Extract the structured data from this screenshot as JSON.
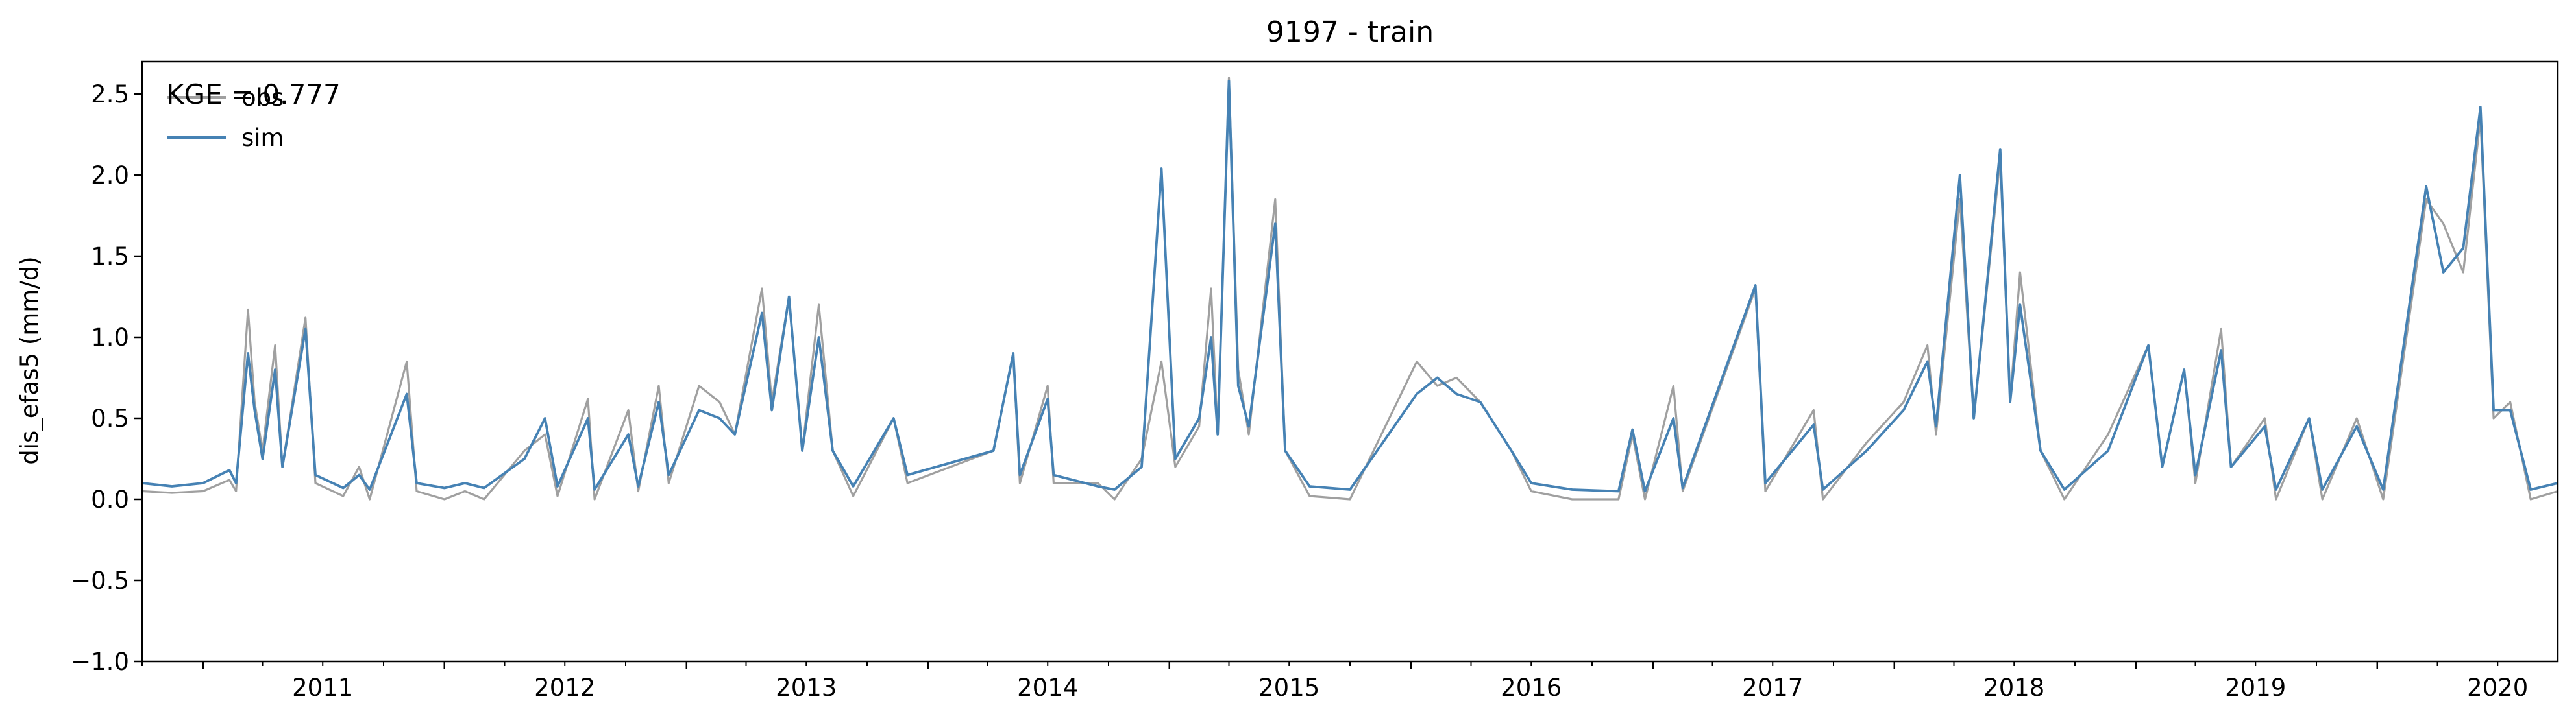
{
  "chart_data": {
    "type": "line",
    "title": "9197 - train",
    "xlabel": "",
    "ylabel": "dis_efas5 (mm/d)",
    "ylim": [
      -1.0,
      2.7
    ],
    "xlim": [
      "2010-10-01",
      "2020-09-30"
    ],
    "yticks": [
      -1.0,
      -0.5,
      0.0,
      0.5,
      1.0,
      1.5,
      2.0,
      2.5
    ],
    "ytick_labels": [
      "−1.0",
      "−0.5",
      "0.0",
      "0.5",
      "1.0",
      "1.5",
      "2.0",
      "2.5"
    ],
    "xtick_labels": [
      "2011",
      "2012",
      "2013",
      "2014",
      "2015",
      "2016",
      "2017",
      "2018",
      "2019",
      "2020"
    ],
    "grid": false,
    "legend_position": "top-left",
    "annotation": "KGE = 0.777",
    "series": [
      {
        "name": "obs",
        "color": "#a0a0a0",
        "points": [
          [
            "2010-10-01",
            0.05
          ],
          [
            "2010-11-15",
            0.04
          ],
          [
            "2011-01-01",
            0.05
          ],
          [
            "2011-02-10",
            0.12
          ],
          [
            "2011-02-20",
            0.05
          ],
          [
            "2011-03-10",
            1.17
          ],
          [
            "2011-03-20",
            0.6
          ],
          [
            "2011-04-01",
            0.3
          ],
          [
            "2011-04-20",
            0.95
          ],
          [
            "2011-05-01",
            0.2
          ],
          [
            "2011-06-05",
            1.12
          ],
          [
            "2011-06-20",
            0.1
          ],
          [
            "2011-08-01",
            0.02
          ],
          [
            "2011-08-25",
            0.2
          ],
          [
            "2011-09-10",
            0.0
          ],
          [
            "2011-11-05",
            0.85
          ],
          [
            "2011-11-20",
            0.05
          ],
          [
            "2012-01-01",
            0.0
          ],
          [
            "2012-02-01",
            0.05
          ],
          [
            "2012-03-01",
            0.0
          ],
          [
            "2012-05-01",
            0.3
          ],
          [
            "2012-06-01",
            0.4
          ],
          [
            "2012-06-20",
            0.02
          ],
          [
            "2012-08-05",
            0.62
          ],
          [
            "2012-08-15",
            0.0
          ],
          [
            "2012-10-05",
            0.55
          ],
          [
            "2012-10-20",
            0.05
          ],
          [
            "2012-11-20",
            0.7
          ],
          [
            "2012-12-05",
            0.1
          ],
          [
            "2013-01-20",
            0.7
          ],
          [
            "2013-02-20",
            0.6
          ],
          [
            "2013-03-15",
            0.4
          ],
          [
            "2013-04-25",
            1.3
          ],
          [
            "2013-05-10",
            0.6
          ],
          [
            "2013-06-05",
            1.25
          ],
          [
            "2013-06-25",
            0.3
          ],
          [
            "2013-07-20",
            1.2
          ],
          [
            "2013-08-10",
            0.3
          ],
          [
            "2013-09-10",
            0.02
          ],
          [
            "2013-11-10",
            0.5
          ],
          [
            "2013-12-01",
            0.1
          ],
          [
            "2014-04-10",
            0.3
          ],
          [
            "2014-05-10",
            0.9
          ],
          [
            "2014-05-20",
            0.1
          ],
          [
            "2014-07-01",
            0.7
          ],
          [
            "2014-07-10",
            0.1
          ],
          [
            "2014-09-15",
            0.1
          ],
          [
            "2014-10-10",
            0.0
          ],
          [
            "2014-11-20",
            0.25
          ],
          [
            "2014-12-20",
            0.85
          ],
          [
            "2015-01-10",
            0.2
          ],
          [
            "2015-02-15",
            0.45
          ],
          [
            "2015-03-05",
            1.3
          ],
          [
            "2015-03-15",
            0.4
          ],
          [
            "2015-04-01",
            2.6
          ],
          [
            "2015-04-15",
            0.8
          ],
          [
            "2015-05-01",
            0.4
          ],
          [
            "2015-06-10",
            1.85
          ],
          [
            "2015-06-25",
            0.3
          ],
          [
            "2015-08-01",
            0.02
          ],
          [
            "2015-10-01",
            0.0
          ],
          [
            "2016-01-10",
            0.85
          ],
          [
            "2016-02-10",
            0.7
          ],
          [
            "2016-03-10",
            0.75
          ],
          [
            "2016-04-15",
            0.6
          ],
          [
            "2016-06-01",
            0.3
          ],
          [
            "2016-07-01",
            0.05
          ],
          [
            "2016-09-01",
            0.0
          ],
          [
            "2016-11-10",
            0.0
          ],
          [
            "2016-12-01",
            0.4
          ],
          [
            "2016-12-20",
            0.0
          ],
          [
            "2017-02-01",
            0.7
          ],
          [
            "2017-02-15",
            0.05
          ],
          [
            "2017-06-05",
            1.3
          ],
          [
            "2017-06-20",
            0.05
          ],
          [
            "2017-09-01",
            0.55
          ],
          [
            "2017-09-15",
            0.0
          ],
          [
            "2017-11-20",
            0.35
          ],
          [
            "2018-01-15",
            0.6
          ],
          [
            "2018-02-20",
            0.95
          ],
          [
            "2018-03-05",
            0.4
          ],
          [
            "2018-04-10",
            1.85
          ],
          [
            "2018-05-01",
            0.5
          ],
          [
            "2018-06-10",
            2.1
          ],
          [
            "2018-06-25",
            0.6
          ],
          [
            "2018-07-10",
            1.4
          ],
          [
            "2018-08-10",
            0.3
          ],
          [
            "2018-09-15",
            0.0
          ],
          [
            "2018-11-20",
            0.4
          ],
          [
            "2019-01-20",
            0.95
          ],
          [
            "2019-02-10",
            0.2
          ],
          [
            "2019-03-15",
            0.8
          ],
          [
            "2019-04-01",
            0.1
          ],
          [
            "2019-05-10",
            1.05
          ],
          [
            "2019-05-25",
            0.2
          ],
          [
            "2019-07-15",
            0.5
          ],
          [
            "2019-08-01",
            0.0
          ],
          [
            "2019-09-20",
            0.5
          ],
          [
            "2019-10-10",
            0.0
          ],
          [
            "2019-12-01",
            0.5
          ],
          [
            "2020-01-10",
            0.0
          ],
          [
            "2020-03-15",
            1.85
          ],
          [
            "2020-04-10",
            1.7
          ],
          [
            "2020-05-10",
            1.4
          ],
          [
            "2020-06-05",
            2.35
          ],
          [
            "2020-06-25",
            0.5
          ],
          [
            "2020-07-20",
            0.6
          ],
          [
            "2020-08-20",
            0.0
          ],
          [
            "2020-09-30",
            0.05
          ]
        ]
      },
      {
        "name": "sim",
        "color": "#4682b4",
        "points": [
          [
            "2010-10-01",
            0.1
          ],
          [
            "2010-11-15",
            0.08
          ],
          [
            "2011-01-01",
            0.1
          ],
          [
            "2011-02-10",
            0.18
          ],
          [
            "2011-02-20",
            0.1
          ],
          [
            "2011-03-10",
            0.9
          ],
          [
            "2011-03-20",
            0.55
          ],
          [
            "2011-04-01",
            0.25
          ],
          [
            "2011-04-20",
            0.8
          ],
          [
            "2011-05-01",
            0.2
          ],
          [
            "2011-06-05",
            1.05
          ],
          [
            "2011-06-20",
            0.15
          ],
          [
            "2011-08-01",
            0.07
          ],
          [
            "2011-08-25",
            0.15
          ],
          [
            "2011-09-10",
            0.06
          ],
          [
            "2011-11-05",
            0.65
          ],
          [
            "2011-11-20",
            0.1
          ],
          [
            "2012-01-01",
            0.07
          ],
          [
            "2012-02-01",
            0.1
          ],
          [
            "2012-03-01",
            0.07
          ],
          [
            "2012-05-01",
            0.25
          ],
          [
            "2012-06-01",
            0.5
          ],
          [
            "2012-06-20",
            0.08
          ],
          [
            "2012-08-05",
            0.5
          ],
          [
            "2012-08-15",
            0.06
          ],
          [
            "2012-10-05",
            0.4
          ],
          [
            "2012-10-20",
            0.08
          ],
          [
            "2012-11-20",
            0.6
          ],
          [
            "2012-12-05",
            0.15
          ],
          [
            "2013-01-20",
            0.55
          ],
          [
            "2013-02-20",
            0.5
          ],
          [
            "2013-03-15",
            0.4
          ],
          [
            "2013-04-25",
            1.15
          ],
          [
            "2013-05-10",
            0.55
          ],
          [
            "2013-06-05",
            1.25
          ],
          [
            "2013-06-25",
            0.3
          ],
          [
            "2013-07-20",
            1.0
          ],
          [
            "2013-08-10",
            0.3
          ],
          [
            "2013-09-10",
            0.08
          ],
          [
            "2013-11-10",
            0.5
          ],
          [
            "2013-12-01",
            0.15
          ],
          [
            "2014-04-10",
            0.3
          ],
          [
            "2014-05-10",
            0.9
          ],
          [
            "2014-05-20",
            0.15
          ],
          [
            "2014-07-01",
            0.62
          ],
          [
            "2014-07-10",
            0.15
          ],
          [
            "2014-09-15",
            0.08
          ],
          [
            "2014-10-10",
            0.06
          ],
          [
            "2014-11-20",
            0.2
          ],
          [
            "2014-12-20",
            2.04
          ],
          [
            "2015-01-10",
            0.25
          ],
          [
            "2015-02-15",
            0.5
          ],
          [
            "2015-03-05",
            1.0
          ],
          [
            "2015-03-15",
            0.4
          ],
          [
            "2015-04-01",
            2.58
          ],
          [
            "2015-04-15",
            0.7
          ],
          [
            "2015-05-01",
            0.45
          ],
          [
            "2015-06-10",
            1.7
          ],
          [
            "2015-06-25",
            0.3
          ],
          [
            "2015-08-01",
            0.08
          ],
          [
            "2015-10-01",
            0.06
          ],
          [
            "2016-01-10",
            0.65
          ],
          [
            "2016-02-10",
            0.75
          ],
          [
            "2016-03-10",
            0.65
          ],
          [
            "2016-04-15",
            0.6
          ],
          [
            "2016-06-01",
            0.3
          ],
          [
            "2016-07-01",
            0.1
          ],
          [
            "2016-09-01",
            0.06
          ],
          [
            "2016-11-10",
            0.05
          ],
          [
            "2016-12-01",
            0.43
          ],
          [
            "2016-12-20",
            0.05
          ],
          [
            "2017-02-01",
            0.5
          ],
          [
            "2017-02-15",
            0.07
          ],
          [
            "2017-06-05",
            1.32
          ],
          [
            "2017-06-20",
            0.1
          ],
          [
            "2017-09-01",
            0.46
          ],
          [
            "2017-09-15",
            0.06
          ],
          [
            "2017-11-20",
            0.3
          ],
          [
            "2018-01-15",
            0.55
          ],
          [
            "2018-02-20",
            0.85
          ],
          [
            "2018-03-05",
            0.45
          ],
          [
            "2018-04-10",
            2.0
          ],
          [
            "2018-05-01",
            0.5
          ],
          [
            "2018-06-10",
            2.16
          ],
          [
            "2018-06-25",
            0.6
          ],
          [
            "2018-07-10",
            1.2
          ],
          [
            "2018-08-10",
            0.3
          ],
          [
            "2018-09-15",
            0.06
          ],
          [
            "2018-11-20",
            0.3
          ],
          [
            "2019-01-20",
            0.95
          ],
          [
            "2019-02-10",
            0.2
          ],
          [
            "2019-03-15",
            0.8
          ],
          [
            "2019-04-01",
            0.15
          ],
          [
            "2019-05-10",
            0.92
          ],
          [
            "2019-05-25",
            0.2
          ],
          [
            "2019-07-15",
            0.45
          ],
          [
            "2019-08-01",
            0.06
          ],
          [
            "2019-09-20",
            0.5
          ],
          [
            "2019-10-10",
            0.06
          ],
          [
            "2019-12-01",
            0.45
          ],
          [
            "2020-01-10",
            0.06
          ],
          [
            "2020-03-15",
            1.93
          ],
          [
            "2020-04-10",
            1.4
          ],
          [
            "2020-05-10",
            1.55
          ],
          [
            "2020-06-05",
            2.42
          ],
          [
            "2020-06-25",
            0.55
          ],
          [
            "2020-07-20",
            0.55
          ],
          [
            "2020-08-20",
            0.06
          ],
          [
            "2020-09-30",
            0.1
          ]
        ]
      }
    ]
  }
}
